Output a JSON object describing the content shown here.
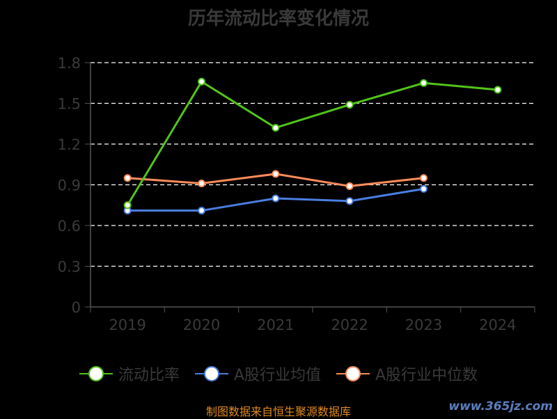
{
  "chart_data": {
    "type": "line",
    "title": "历年流动比率变化情况",
    "categories": [
      "2019",
      "2020",
      "2021",
      "2022",
      "2023",
      "2024"
    ],
    "yticks": [
      "0",
      "0.3",
      "0.6",
      "0.9",
      "1.2",
      "1.5",
      "1.8"
    ],
    "ylim": [
      0,
      1.8
    ],
    "grid": true,
    "legend_position": "bottom",
    "series": [
      {
        "name": "流动比率",
        "color": "#52c41a",
        "values": [
          0.75,
          1.66,
          1.32,
          1.49,
          1.65,
          1.6
        ]
      },
      {
        "name": "A股行业均值",
        "color": "#4a7fe0",
        "values": [
          0.71,
          0.71,
          0.8,
          0.78,
          0.87,
          null
        ]
      },
      {
        "name": "A股行业中位数",
        "color": "#ff8c5a",
        "values": [
          0.95,
          0.91,
          0.98,
          0.89,
          0.95,
          null
        ]
      }
    ]
  },
  "footer": {
    "source": "制图数据来自恒生聚源数据库",
    "watermark": "www.365jz.com"
  }
}
